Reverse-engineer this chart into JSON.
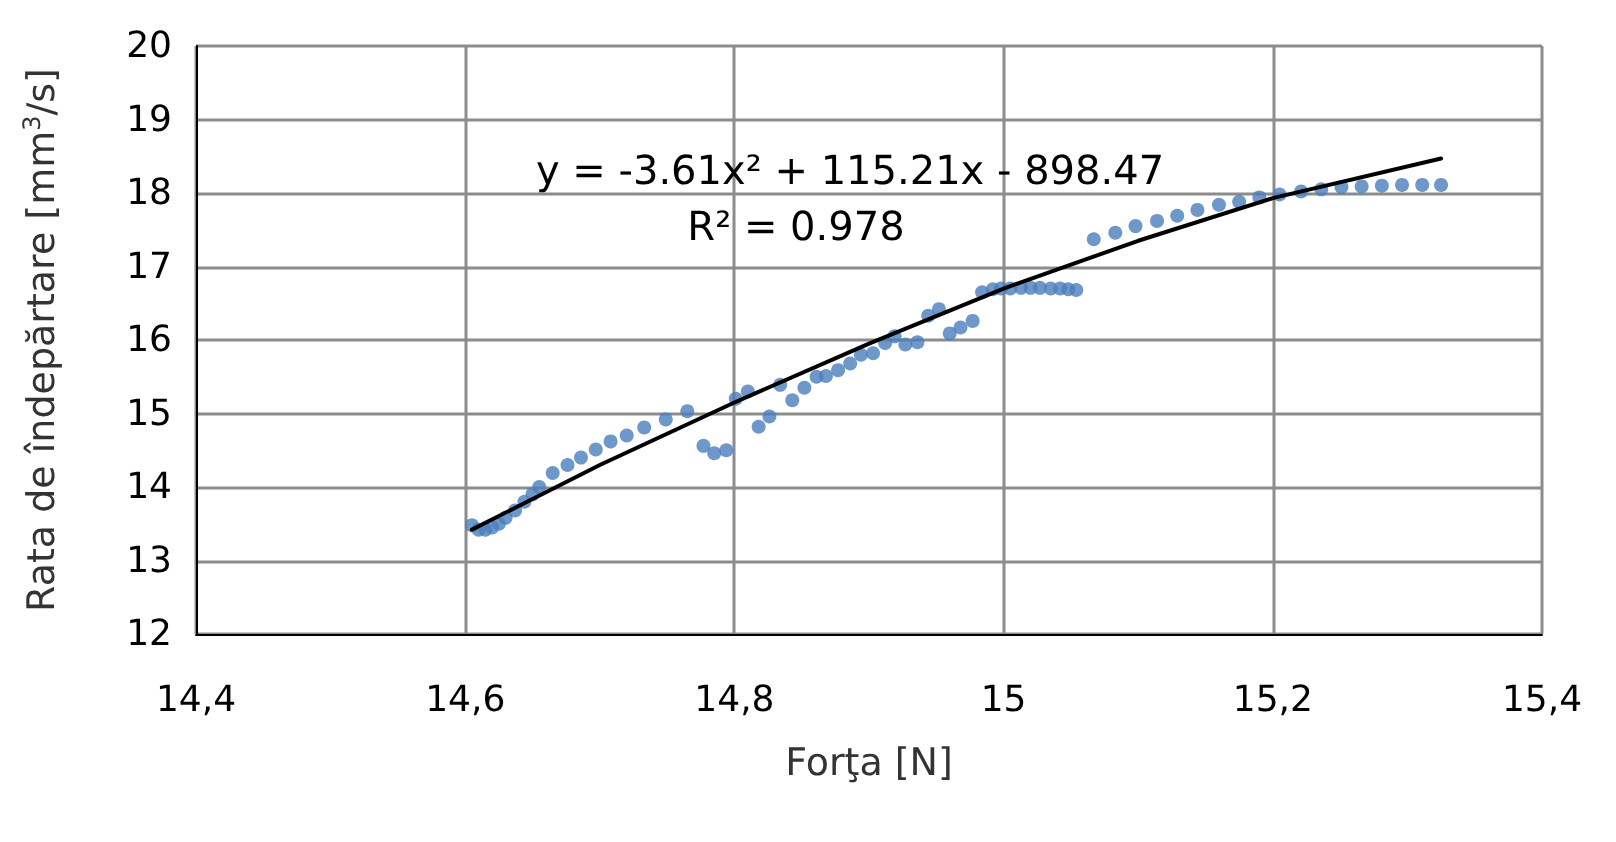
{
  "chart_data": {
    "type": "scatter",
    "xlabel": "Forţa [N]",
    "ylabel": "Rata de îndepărtare [mm$^{3}$/s]",
    "annotations": [
      "y = -3.61x² + 115.21x - 898.47",
      "R² = 0.978"
    ],
    "xlim": [
      14.4,
      15.4
    ],
    "xticks": [
      {
        "value": 14.4,
        "label": "14,4"
      },
      {
        "value": 14.6,
        "label": "14,6"
      },
      {
        "value": 14.8,
        "label": "14,8"
      },
      15,
      {
        "value": 15.2,
        "label": "15,2"
      },
      {
        "value": 15.4,
        "label": "15,4"
      }
    ],
    "ylim": [
      12,
      20
    ],
    "yticks": [
      12,
      13,
      14,
      15,
      16,
      17,
      18,
      19,
      20
    ],
    "grid": true,
    "series": [
      {
        "marker": "circle",
        "color": "#4a7ebb",
        "x": [
          14.605,
          14.61,
          14.615,
          14.62,
          14.625,
          14.63,
          14.637,
          14.644,
          14.65,
          14.655,
          14.665,
          14.676,
          14.686,
          14.697,
          14.708,
          14.72,
          14.733,
          14.749,
          14.765,
          14.777,
          14.785,
          14.794,
          14.801,
          14.81,
          14.818,
          14.826,
          14.834,
          14.843,
          14.852,
          14.861,
          14.868,
          14.877,
          14.886,
          14.894,
          14.903,
          14.912,
          14.919,
          14.927,
          14.936,
          14.944,
          14.952,
          14.96,
          14.968,
          14.977,
          14.984,
          14.992,
          14.998,
          15.005,
          15.013,
          15.02,
          15.027,
          15.035,
          15.042,
          15.048,
          15.054,
          15.067,
          15.083,
          15.098,
          15.114,
          15.129,
          15.144,
          15.16,
          15.175,
          15.19,
          15.205,
          15.221,
          15.236,
          15.251,
          15.266,
          15.281,
          15.296,
          15.311,
          15.325
        ],
        "values": [
          13.48,
          13.42,
          13.42,
          13.45,
          13.5,
          13.58,
          13.68,
          13.8,
          13.9,
          14.0,
          14.19,
          14.3,
          14.4,
          14.51,
          14.62,
          14.7,
          14.81,
          14.92,
          15.03,
          14.56,
          14.46,
          14.5,
          15.2,
          15.3,
          14.82,
          14.96,
          15.39,
          15.18,
          15.35,
          15.5,
          15.51,
          15.59,
          15.68,
          15.8,
          15.82,
          15.96,
          16.05,
          15.94,
          15.97,
          16.33,
          16.42,
          16.09,
          16.17,
          16.26,
          16.65,
          16.69,
          16.7,
          16.7,
          16.71,
          16.71,
          16.71,
          16.7,
          16.7,
          16.69,
          16.68,
          17.37,
          17.46,
          17.55,
          17.62,
          17.69,
          17.77,
          17.84,
          17.88,
          17.94,
          17.98,
          18.02,
          18.05,
          18.08,
          18.09,
          18.1,
          18.11,
          18.11,
          18.11
        ]
      },
      {
        "type": "line",
        "marker": "none",
        "line_style": "solid",
        "color": "#000000",
        "x": [
          14.605,
          14.7,
          14.8,
          14.9,
          15.0,
          15.1,
          15.2,
          15.325
        ],
        "values": [
          13.42,
          14.3,
          15.15,
          15.95,
          16.7,
          17.35,
          17.93,
          18.47
        ]
      }
    ]
  }
}
